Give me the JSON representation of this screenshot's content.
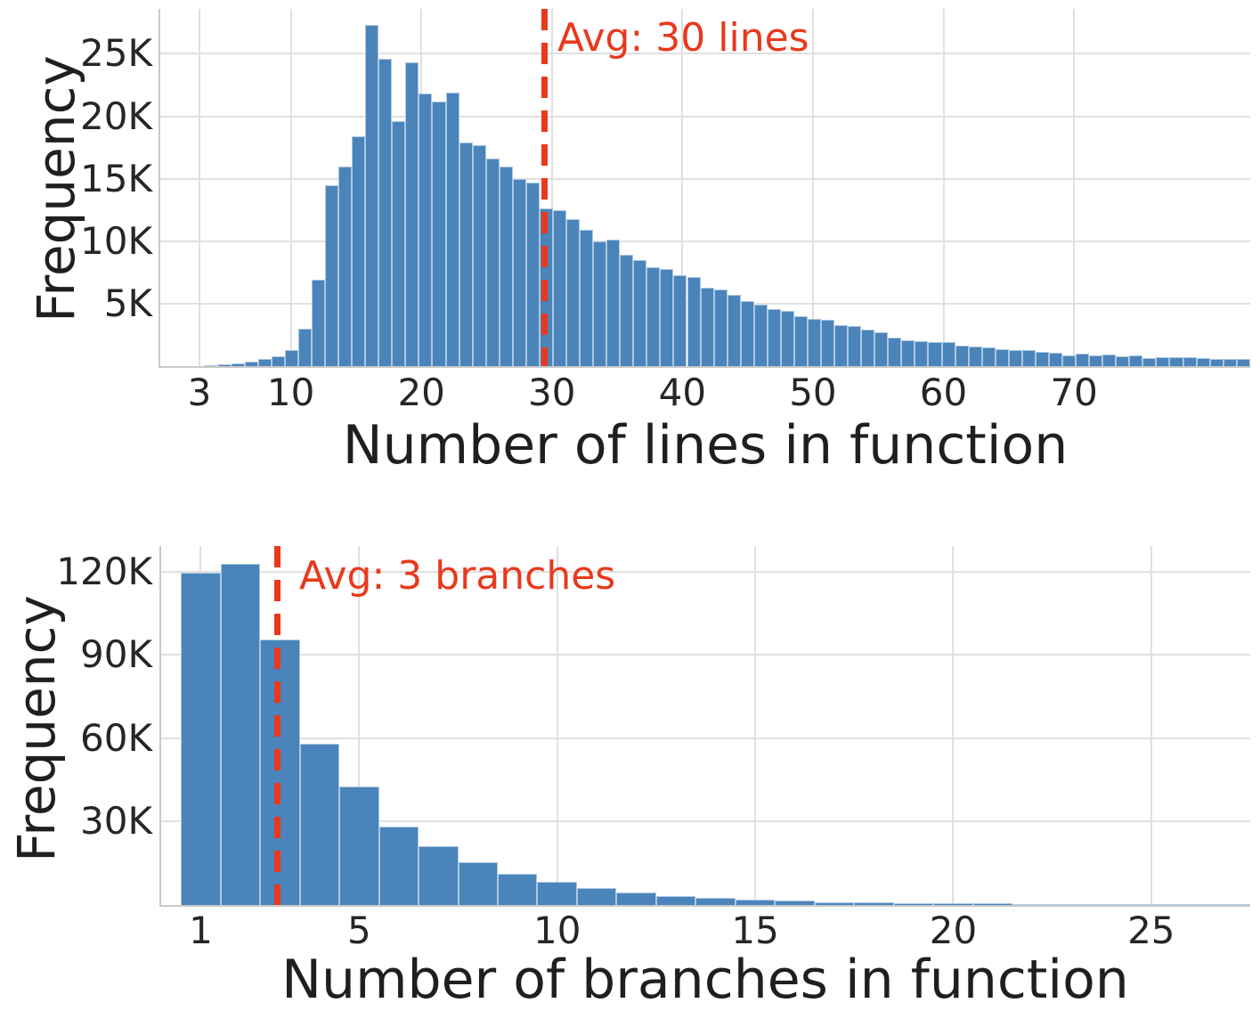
{
  "colors": {
    "bar_fill": "#4a84ba",
    "bar_edge": "rgba(255,255,255,0.55)",
    "avg_accent": "#e8391d",
    "grid": "#e0e0e0",
    "spine": "#c9c9c9",
    "text": "#262626"
  },
  "chart_data": [
    {
      "type": "bar",
      "variant": "histogram",
      "xlabel": "Number of lines in function",
      "ylabel": "Frequency",
      "xlim": [
        0,
        83.5
      ],
      "ylim": [
        0,
        28600
      ],
      "grid": true,
      "xticks": [
        {
          "v": 3,
          "label": "3"
        },
        {
          "v": 10,
          "label": "10"
        },
        {
          "v": 20,
          "label": "20"
        },
        {
          "v": 30,
          "label": "30"
        },
        {
          "v": 40,
          "label": "40"
        },
        {
          "v": 50,
          "label": "50"
        },
        {
          "v": 60,
          "label": "60"
        },
        {
          "v": 70,
          "label": "70"
        }
      ],
      "yticks": [
        {
          "v": 5000,
          "label": "5K"
        },
        {
          "v": 10000,
          "label": "10K"
        },
        {
          "v": 15000,
          "label": "15K"
        },
        {
          "v": 20000,
          "label": "20K"
        },
        {
          "v": 25000,
          "label": "25K"
        }
      ],
      "bins": {
        "start": 3.38,
        "width": 1.027
      },
      "heights": [
        100,
        120,
        250,
        350,
        550,
        800,
        1300,
        3000,
        6900,
        14500,
        16000,
        18400,
        27300,
        24600,
        19600,
        24300,
        21800,
        21200,
        21900,
        17900,
        17700,
        16600,
        16000,
        15000,
        14700,
        12600,
        12500,
        11800,
        10900,
        10000,
        10100,
        8900,
        8500,
        7900,
        7800,
        7300,
        7100,
        6300,
        6100,
        5700,
        5200,
        4900,
        4600,
        4400,
        4000,
        3800,
        3700,
        3300,
        3200,
        2900,
        2700,
        2300,
        2100,
        2000,
        1950,
        1930,
        1640,
        1570,
        1500,
        1360,
        1310,
        1260,
        1170,
        1070,
        880,
        1020,
        830,
        950,
        790,
        830,
        640,
        710,
        690,
        740,
        640,
        600,
        550,
        600
      ],
      "avg_line": {
        "x": 29.45,
        "label": "Avg: 30 lines"
      }
    },
    {
      "type": "bar",
      "variant": "histogram",
      "xlabel": "Number of branches in function",
      "ylabel": "Frequency",
      "xlim": [
        0,
        27.5
      ],
      "ylim": [
        0,
        129300
      ],
      "grid": true,
      "xticks": [
        {
          "v": 1,
          "label": "1"
        },
        {
          "v": 5,
          "label": "5"
        },
        {
          "v": 10,
          "label": "10"
        },
        {
          "v": 15,
          "label": "15"
        },
        {
          "v": 20,
          "label": "20"
        },
        {
          "v": 25,
          "label": "25"
        }
      ],
      "yticks": [
        {
          "v": 30000,
          "label": "30K"
        },
        {
          "v": 60000,
          "label": "60K"
        },
        {
          "v": 90000,
          "label": "90K"
        },
        {
          "v": 120000,
          "label": "120K"
        }
      ],
      "bins": {
        "start": 0.5,
        "width": 1
      },
      "heights": [
        119800,
        123000,
        95600,
        58100,
        42800,
        28200,
        21200,
        15400,
        11300,
        8300,
        6100,
        4600,
        3300,
        2700,
        2000,
        1600,
        1100,
        900,
        750,
        620,
        520,
        430,
        360,
        300,
        250,
        210,
        180
      ],
      "avg_line": {
        "x": 2.93,
        "label": "Avg: 3 branches"
      }
    }
  ]
}
